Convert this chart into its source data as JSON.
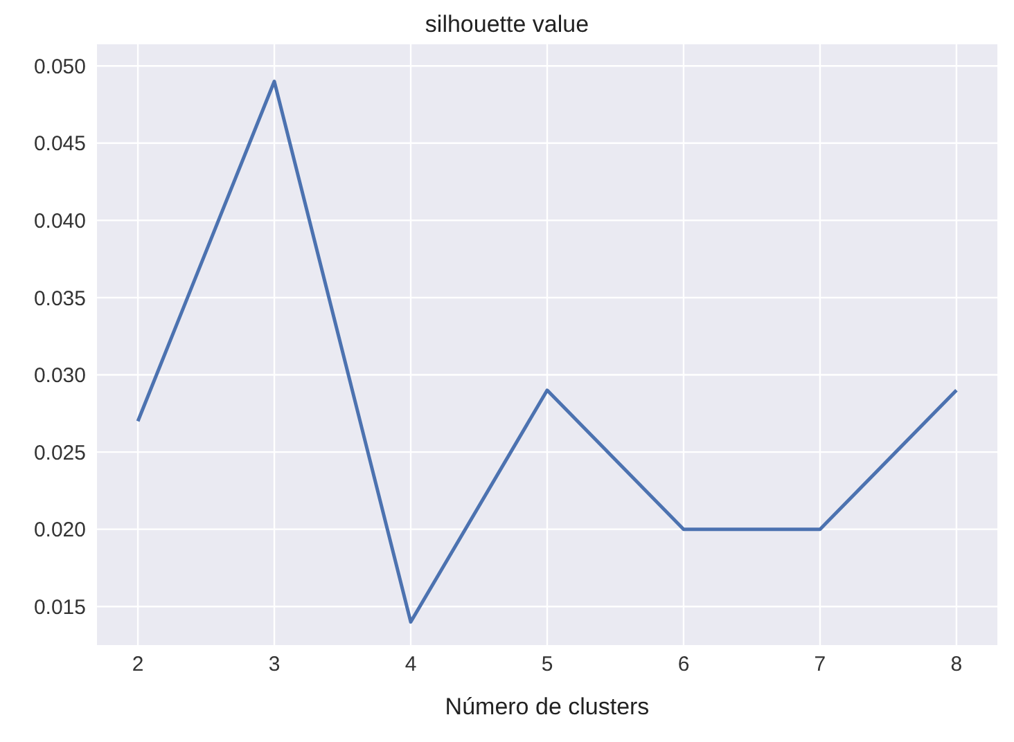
{
  "chart_data": {
    "type": "line",
    "title": "silhouette value",
    "xlabel": "Número de clusters",
    "x": [
      2,
      3,
      4,
      5,
      6,
      7,
      8
    ],
    "series": [
      {
        "color": "#4c72b0",
        "values": [
          0.027,
          0.049,
          0.014,
          0.029,
          0.02,
          0.02,
          0.029
        ]
      }
    ],
    "xlim": [
      1.7,
      8.3
    ],
    "xticks": [
      2,
      3,
      4,
      5,
      6,
      7,
      8
    ],
    "ylim": [
      0.0125,
      0.0514
    ],
    "yticks": [
      {
        "value": 0.015,
        "label": "0.015"
      },
      {
        "value": 0.02,
        "label": "0.020"
      },
      {
        "value": 0.025,
        "label": "0.025"
      },
      {
        "value": 0.03,
        "label": "0.030"
      },
      {
        "value": 0.035,
        "label": "0.035"
      },
      {
        "value": 0.04,
        "label": "0.040"
      },
      {
        "value": 0.045,
        "label": "0.045"
      },
      {
        "value": 0.05,
        "label": "0.050"
      }
    ],
    "grid": true,
    "marker": "none",
    "line_style": "solid"
  }
}
